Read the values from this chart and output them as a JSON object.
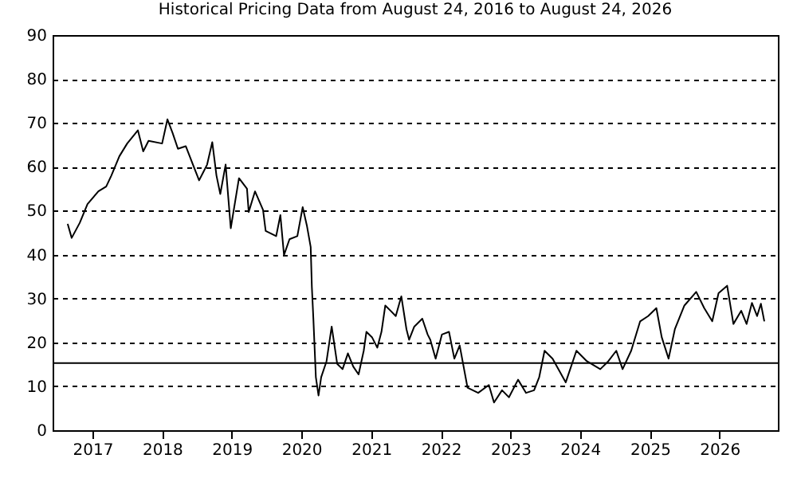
{
  "chart_data": {
    "type": "line",
    "title": "Historical Pricing Data from August 24, 2016 to August 24, 2026",
    "x": [
      "2016-08-24",
      "2016-09-14",
      "2016-10-26",
      "2016-12-06",
      "2017-02-01",
      "2017-03-14",
      "2017-04-10",
      "2017-05-22",
      "2017-07-02",
      "2017-08-27",
      "2017-09-24",
      "2017-10-22",
      "2018-01-01",
      "2018-01-29",
      "2018-02-25",
      "2018-03-25",
      "2018-05-05",
      "2018-06-17",
      "2018-07-14",
      "2018-08-25",
      "2018-09-21",
      "2018-10-13",
      "2018-11-02",
      "2018-11-30",
      "2018-12-27",
      "2019-02-08",
      "2019-03-22",
      "2019-03-31",
      "2019-05-03",
      "2019-06-14",
      "2019-06-28",
      "2019-08-22",
      "2019-09-13",
      "2019-10-02",
      "2019-10-31",
      "2019-12-11",
      "2020-01-08",
      "2020-01-30",
      "2020-02-19",
      "2020-02-25",
      "2020-03-04",
      "2020-03-17",
      "2020-03-31",
      "2020-04-14",
      "2020-05-12",
      "2020-06-08",
      "2020-07-07",
      "2020-08-04",
      "2020-09-01",
      "2020-09-29",
      "2020-10-27",
      "2020-11-23",
      "2020-12-07",
      "2021-01-05",
      "2021-02-02",
      "2021-02-24",
      "2021-03-16",
      "2021-04-13",
      "2021-05-10",
      "2021-06-08",
      "2021-07-05",
      "2021-07-19",
      "2021-08-15",
      "2021-09-26",
      "2021-10-24",
      "2021-11-07",
      "2021-12-05",
      "2022-01-07",
      "2022-02-13",
      "2022-03-13",
      "2022-04-10",
      "2022-05-21",
      "2022-07-16",
      "2022-09-10",
      "2022-10-07",
      "2022-11-18",
      "2022-12-24",
      "2023-02-10",
      "2023-03-24",
      "2023-05-05",
      "2023-06-01",
      "2023-06-29",
      "2023-08-10",
      "2023-10-18",
      "2023-12-13",
      "2024-02-06",
      "2024-04-16",
      "2024-05-28",
      "2024-07-09",
      "2024-08-11",
      "2024-09-25",
      "2024-11-11",
      "2024-12-23",
      "2025-02-04",
      "2025-03-04",
      "2025-04-09",
      "2025-05-12",
      "2025-07-01",
      "2025-09-01",
      "2025-10-13",
      "2025-11-24",
      "2025-12-27",
      "2026-02-10",
      "2026-03-15",
      "2026-04-25",
      "2026-05-23",
      "2026-06-20",
      "2026-07-17",
      "2026-08-06",
      "2026-08-24"
    ],
    "series": [
      {
        "color": "#000000",
        "values": [
          47,
          43.8,
          47.2,
          51.5,
          54.4,
          55.5,
          58,
          62.4,
          65.3,
          68.3,
          63.5,
          65.9,
          65.3,
          70.8,
          67.7,
          64.1,
          64.7,
          59.9,
          56.9,
          60.5,
          65.6,
          58,
          53.8,
          60.5,
          46,
          57.4,
          55,
          49.7,
          54.4,
          50.2,
          45.4,
          44.2,
          49,
          39.9,
          43.5,
          44.2,
          50.8,
          46.6,
          41.7,
          32.7,
          25.4,
          12.1,
          7.9,
          12.1,
          15.7,
          23.6,
          15.1,
          13.9,
          17.5,
          14.5,
          12.7,
          18.1,
          22.4,
          21.2,
          18.8,
          22.4,
          28.4,
          27.2,
          26,
          30.5,
          23,
          20.6,
          23.6,
          25.4,
          21.8,
          20.6,
          16.3,
          21.8,
          22.4,
          16.3,
          19.3,
          9.7,
          8.5,
          10.3,
          6.3,
          9.1,
          7.5,
          11.5,
          8.5,
          9.1,
          12.1,
          18.1,
          16.3,
          10.9,
          18.1,
          15.7,
          13.9,
          15.7,
          18.1,
          13.9,
          18.1,
          24.8,
          26,
          27.8,
          21.2,
          16.3,
          23,
          28.4,
          31.5,
          27.8,
          24.8,
          31.2,
          32.9,
          24.2,
          27.2,
          24.2,
          29,
          26,
          28.8,
          24.8
        ]
      }
    ],
    "xlim": [
      "2016-06-06",
      "2026-11-03"
    ],
    "xticks": [
      "2017",
      "2018",
      "2019",
      "2020",
      "2021",
      "2022",
      "2023",
      "2024",
      "2025",
      "2026"
    ],
    "ylim": [
      0,
      90
    ],
    "yticks": [
      0,
      10,
      20,
      30,
      40,
      50,
      60,
      70,
      80,
      90
    ],
    "grid": "y",
    "line_style": "solid",
    "ref_lines": [
      {
        "axis": "y",
        "value": 15.3,
        "color": "#000000"
      }
    ]
  }
}
